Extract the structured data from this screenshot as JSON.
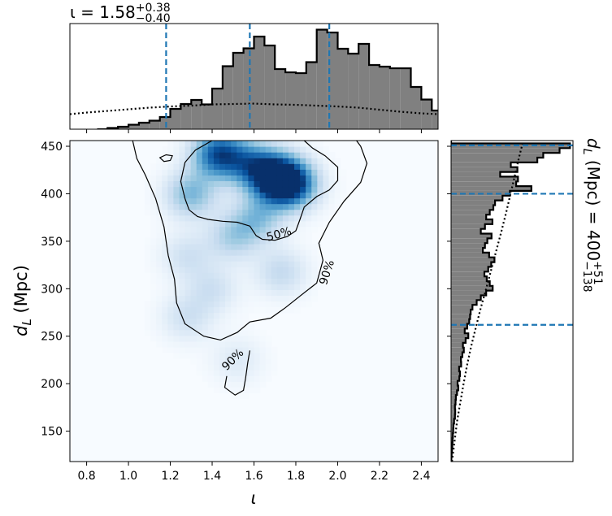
{
  "top_title": {
    "prefix": "ι = 1.58",
    "sup": "+0.38",
    "sub": "−0.40"
  },
  "right_title": {
    "prefix": "d",
    "prefix_sub": "L",
    "unit": " (Mpc) = 400",
    "sup": "+51",
    "sub": "−138"
  },
  "colors": {
    "hist_fill": "#808080",
    "hist_edge": "#000000",
    "dashed": "#1f77b4",
    "contour": "#000000",
    "density_colormap": "Blues"
  },
  "chart_data": [
    {
      "panel": "joint-density",
      "type": "heatmap",
      "xlabel": "ι",
      "ylabel_main": "d",
      "ylabel_sub": "L",
      "ylabel_unit": " (Mpc)",
      "xlim": [
        0.72,
        2.48
      ],
      "ylim": [
        118,
        456
      ],
      "xticks": [
        0.8,
        1.0,
        1.2,
        1.4,
        1.6,
        1.8,
        2.0,
        2.2,
        2.4
      ],
      "xtick_labels": [
        "0.8",
        "1.0",
        "1.2",
        "1.4",
        "1.6",
        "1.8",
        "2.0",
        "2.2",
        "2.4"
      ],
      "yticks": [
        150,
        200,
        250,
        300,
        350,
        400,
        450
      ],
      "ytick_labels": [
        "150",
        "200",
        "250",
        "300",
        "350",
        "400",
        "450"
      ],
      "density_peaks": [
        {
          "x": 1.43,
          "y": 442,
          "amp": 0.85
        },
        {
          "x": 1.7,
          "y": 418,
          "amp": 1.0
        },
        {
          "x": 1.78,
          "y": 410,
          "amp": 0.85
        },
        {
          "x": 1.58,
          "y": 432,
          "amp": 0.55
        },
        {
          "x": 1.3,
          "y": 400,
          "amp": 0.45
        },
        {
          "x": 1.62,
          "y": 375,
          "amp": 0.38
        },
        {
          "x": 1.5,
          "y": 355,
          "amp": 0.32
        },
        {
          "x": 1.28,
          "y": 335,
          "amp": 0.2
        },
        {
          "x": 1.73,
          "y": 318,
          "amp": 0.25
        },
        {
          "x": 1.4,
          "y": 300,
          "amp": 0.2
        },
        {
          "x": 1.28,
          "y": 270,
          "amp": 0.2
        },
        {
          "x": 1.52,
          "y": 225,
          "amp": 0.13
        }
      ],
      "contours": [
        {
          "label": "50%",
          "label_pos": [
            1.72,
            357
          ],
          "label_angle": -16,
          "path": [
            [
              1.4,
              456
            ],
            [
              1.32,
              446
            ],
            [
              1.27,
              433
            ],
            [
              1.25,
              413
            ],
            [
              1.27,
              395
            ],
            [
              1.29,
              383
            ],
            [
              1.33,
              376
            ],
            [
              1.38,
              373
            ],
            [
              1.45,
              371
            ],
            [
              1.52,
              370
            ],
            [
              1.58,
              366
            ],
            [
              1.61,
              356
            ],
            [
              1.64,
              352
            ],
            [
              1.7,
              351
            ],
            [
              1.76,
              355
            ],
            [
              1.8,
              361
            ],
            [
              1.82,
              373
            ],
            [
              1.84,
              386
            ],
            [
              1.9,
              397
            ],
            [
              1.96,
              404
            ],
            [
              2.0,
              414
            ],
            [
              2.0,
              428
            ],
            [
              1.94,
              440
            ],
            [
              1.88,
              448
            ],
            [
              1.84,
              456
            ]
          ]
        },
        {
          "label": "",
          "closed": true,
          "path": [
            [
              1.15,
              438
            ],
            [
              1.18,
              441
            ],
            [
              1.21,
              440
            ],
            [
              1.2,
              435
            ],
            [
              1.17,
              434
            ]
          ]
        },
        {
          "label": "90%",
          "label_pos": [
            1.95,
            317
          ],
          "label_angle": -72,
          "path": [
            [
              1.02,
              456
            ],
            [
              1.04,
              437
            ],
            [
              1.08,
              420
            ],
            [
              1.13,
              395
            ],
            [
              1.17,
              365
            ],
            [
              1.19,
              335
            ],
            [
              1.22,
              310
            ],
            [
              1.23,
              285
            ],
            [
              1.27,
              263
            ],
            [
              1.36,
              250
            ],
            [
              1.44,
              246
            ],
            [
              1.52,
              254
            ],
            [
              1.58,
              265
            ],
            [
              1.68,
              269
            ],
            [
              1.75,
              280
            ],
            [
              1.83,
              294
            ],
            [
              1.9,
              306
            ],
            [
              1.93,
              330
            ],
            [
              1.91,
              348
            ],
            [
              1.96,
              370
            ],
            [
              2.03,
              392
            ],
            [
              2.11,
              412
            ],
            [
              2.14,
              432
            ],
            [
              2.11,
              450
            ],
            [
              2.09,
              456
            ]
          ]
        },
        {
          "label": "90%",
          "label_pos": [
            1.5,
            225
          ],
          "label_angle": -45,
          "path": [
            [
              1.47,
              208
            ],
            [
              1.46,
              196
            ],
            [
              1.51,
              188
            ],
            [
              1.55,
              193
            ],
            [
              1.56,
              206
            ],
            [
              1.57,
              222
            ],
            [
              1.58,
              235
            ]
          ]
        }
      ]
    },
    {
      "panel": "iota-marginal",
      "type": "bar",
      "x_start": 0.85,
      "bin_width": 0.05,
      "values": [
        0,
        0.3,
        0.6,
        1.1,
        1.6,
        2.1,
        3.0,
        5.0,
        6.2,
        7.2,
        6.1,
        10.0,
        15.5,
        18.8,
        19.9,
        22.8,
        20.6,
        14.8,
        14.0,
        13.8,
        16.5,
        24.5,
        23.8,
        19.8,
        18.6,
        21.0,
        15.8,
        15.4,
        15.0,
        15.0,
        10.4,
        7.3,
        4.6,
        4.9,
        2.8,
        1.3,
        0.7,
        0.5,
        0.3,
        0.2,
        0.1,
        0,
        0,
        0,
        0
      ],
      "prior_x": [
        0.72,
        0.8,
        0.9,
        1.0,
        1.1,
        1.2,
        1.3,
        1.4,
        1.5,
        1.6,
        1.7,
        1.8,
        1.9,
        2.0,
        2.1,
        2.2,
        2.3,
        2.4,
        2.48
      ],
      "prior_values": [
        3.7,
        4.1,
        4.5,
        4.9,
        5.3,
        5.6,
        5.8,
        6.1,
        6.2,
        6.3,
        6.1,
        6.0,
        5.8,
        5.6,
        5.3,
        4.8,
        4.3,
        3.9,
        3.7
      ],
      "ylim": [
        0,
        26
      ],
      "dashed_lines": [
        1.18,
        1.58,
        1.96
      ]
    },
    {
      "panel": "dl-marginal",
      "type": "bar",
      "orientation": "horizontal",
      "y_start": 118,
      "bin_width": 5,
      "values": [
        0.1,
        0.2,
        0.3,
        0.4,
        0.5,
        0.6,
        0.7,
        0.8,
        1.0,
        1.3,
        1.4,
        1.3,
        1.5,
        1.6,
        2.0,
        2.4,
        2.2,
        2.8,
        3.0,
        2.7,
        3.4,
        3.3,
        3.8,
        4.3,
        4.0,
        4.9,
        5.8,
        4.6,
        5.4,
        6.1,
        6.4,
        6.6,
        7.2,
        8.6,
        10.0,
        11.8,
        14.0,
        13.0,
        12.0,
        11.2,
        12.5,
        13.5,
        14.6,
        12.8,
        10.7,
        11.4,
        12.2,
        13.6,
        10.0,
        11.4,
        13.9,
        11.8,
        13.0,
        14.2,
        14.8,
        17.3,
        19.8,
        27.0,
        21.9,
        22.5,
        16.5,
        22.3,
        20.1,
        29.0,
        31.0,
        36.5,
        40.0,
        0,
        0
      ],
      "prior_y": [
        118,
        140,
        160,
        180,
        200,
        220,
        240,
        260,
        280,
        300,
        320,
        340,
        360,
        380,
        400,
        420,
        440,
        456
      ],
      "prior_values": [
        0.3,
        1.2,
        2.0,
        3.1,
        4.2,
        5.4,
        6.8,
        8.4,
        10.0,
        11.8,
        13.5,
        15.2,
        16.9,
        18.5,
        20.0,
        21.5,
        23.0,
        24.3
      ],
      "xlim": [
        0,
        41
      ],
      "dashed_lines": [
        262,
        400,
        451
      ]
    }
  ]
}
